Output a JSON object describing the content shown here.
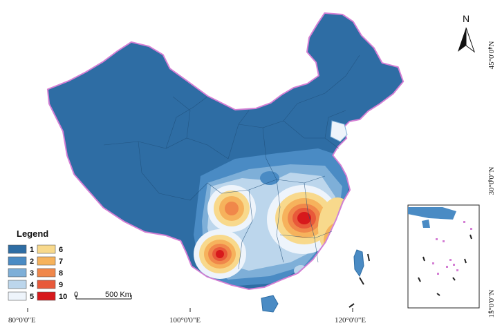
{
  "north_label": "N",
  "legend": {
    "title": "Legend",
    "classes": [
      {
        "label": "1",
        "color": "#2e6da4"
      },
      {
        "label": "2",
        "color": "#4a8bc4"
      },
      {
        "label": "3",
        "color": "#7eafd8"
      },
      {
        "label": "4",
        "color": "#bcd6ec"
      },
      {
        "label": "5",
        "color": "#eef4fb"
      },
      {
        "label": "6",
        "color": "#f8d98c"
      },
      {
        "label": "7",
        "color": "#f6b25c"
      },
      {
        "label": "8",
        "color": "#f0874a"
      },
      {
        "label": "9",
        "color": "#e8593a"
      },
      {
        "label": "10",
        "color": "#d7191c"
      }
    ]
  },
  "scale_bar": {
    "start": "0",
    "end": "500 Km"
  },
  "longitude_labels": [
    "80°0'0\"E",
    "100°0'0\"E",
    "120°0'0\"E"
  ],
  "latitude_labels": [
    "45°0'0\"N",
    "30°0'0\"N",
    "15°0'0\"N"
  ],
  "colors": {
    "border": "#d47fd4",
    "base": "#2e6da4",
    "province_lines": "#1f4f7a"
  }
}
